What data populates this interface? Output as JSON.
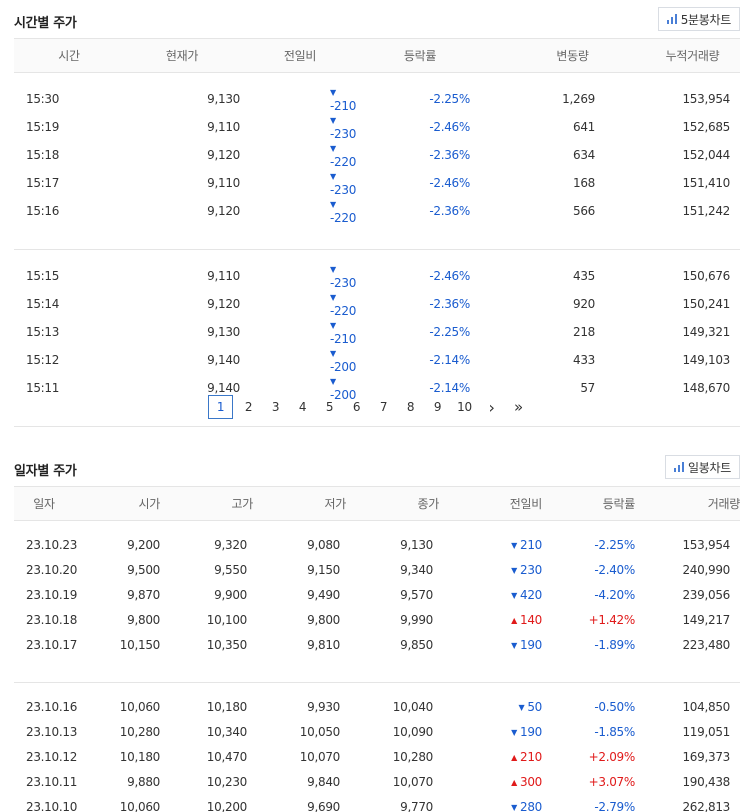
{
  "hourly": {
    "title": "시간별 주가",
    "chart_button": "5분봉차트",
    "columns": [
      "시간",
      "현재가",
      "전일비",
      "등락률",
      "변동량",
      "누적거래량"
    ],
    "groups": [
      [
        {
          "time": "15:30",
          "price": "9,130",
          "dir": "down",
          "change": "-210",
          "rate": "-2.25%",
          "vol_change": "1,269",
          "cum_vol": "153,954"
        },
        {
          "time": "15:19",
          "price": "9,110",
          "dir": "down",
          "change": "-230",
          "rate": "-2.46%",
          "vol_change": "641",
          "cum_vol": "152,685"
        },
        {
          "time": "15:18",
          "price": "9,120",
          "dir": "down",
          "change": "-220",
          "rate": "-2.36%",
          "vol_change": "634",
          "cum_vol": "152,044"
        },
        {
          "time": "15:17",
          "price": "9,110",
          "dir": "down",
          "change": "-230",
          "rate": "-2.46%",
          "vol_change": "168",
          "cum_vol": "151,410"
        },
        {
          "time": "15:16",
          "price": "9,120",
          "dir": "down",
          "change": "-220",
          "rate": "-2.36%",
          "vol_change": "566",
          "cum_vol": "151,242"
        }
      ],
      [
        {
          "time": "15:15",
          "price": "9,110",
          "dir": "down",
          "change": "-230",
          "rate": "-2.46%",
          "vol_change": "435",
          "cum_vol": "150,676"
        },
        {
          "time": "15:14",
          "price": "9,120",
          "dir": "down",
          "change": "-220",
          "rate": "-2.36%",
          "vol_change": "920",
          "cum_vol": "150,241"
        },
        {
          "time": "15:13",
          "price": "9,130",
          "dir": "down",
          "change": "-210",
          "rate": "-2.25%",
          "vol_change": "218",
          "cum_vol": "149,321"
        },
        {
          "time": "15:12",
          "price": "9,140",
          "dir": "down",
          "change": "-200",
          "rate": "-2.14%",
          "vol_change": "433",
          "cum_vol": "149,103"
        },
        {
          "time": "15:11",
          "price": "9,140",
          "dir": "down",
          "change": "-200",
          "rate": "-2.14%",
          "vol_change": "57",
          "cum_vol": "148,670"
        }
      ]
    ]
  },
  "pagination": {
    "current": "1",
    "pages": [
      "2",
      "3",
      "4",
      "5",
      "6",
      "7",
      "8",
      "9",
      "10"
    ],
    "next": "›",
    "last": "»"
  },
  "daily": {
    "title": "일자별 주가",
    "chart_button": "일봉차트",
    "columns": [
      "일자",
      "시가",
      "고가",
      "저가",
      "종가",
      "전일비",
      "등락률",
      "거래량"
    ],
    "groups": [
      [
        {
          "date": "23.10.23",
          "open": "9,200",
          "high": "9,320",
          "low": "9,080",
          "close": "9,130",
          "dir": "down",
          "change": "210",
          "rate": "-2.25%",
          "volume": "153,954"
        },
        {
          "date": "23.10.20",
          "open": "9,500",
          "high": "9,550",
          "low": "9,150",
          "close": "9,340",
          "dir": "down",
          "change": "230",
          "rate": "-2.40%",
          "volume": "240,990"
        },
        {
          "date": "23.10.19",
          "open": "9,870",
          "high": "9,900",
          "low": "9,490",
          "close": "9,570",
          "dir": "down",
          "change": "420",
          "rate": "-4.20%",
          "volume": "239,056"
        },
        {
          "date": "23.10.18",
          "open": "9,800",
          "high": "10,100",
          "low": "9,800",
          "close": "9,990",
          "dir": "up",
          "change": "140",
          "rate": "+1.42%",
          "volume": "149,217"
        },
        {
          "date": "23.10.17",
          "open": "10,150",
          "high": "10,350",
          "low": "9,810",
          "close": "9,850",
          "dir": "down",
          "change": "190",
          "rate": "-1.89%",
          "volume": "223,480"
        }
      ],
      [
        {
          "date": "23.10.16",
          "open": "10,060",
          "high": "10,180",
          "low": "9,930",
          "close": "10,040",
          "dir": "down",
          "change": "50",
          "rate": "-0.50%",
          "volume": "104,850"
        },
        {
          "date": "23.10.13",
          "open": "10,280",
          "high": "10,340",
          "low": "10,050",
          "close": "10,090",
          "dir": "down",
          "change": "190",
          "rate": "-1.85%",
          "volume": "119,051"
        },
        {
          "date": "23.10.12",
          "open": "10,180",
          "high": "10,470",
          "low": "10,070",
          "close": "10,280",
          "dir": "up",
          "change": "210",
          "rate": "+2.09%",
          "volume": "169,373"
        },
        {
          "date": "23.10.11",
          "open": "9,880",
          "high": "10,230",
          "low": "9,840",
          "close": "10,070",
          "dir": "up",
          "change": "300",
          "rate": "+3.07%",
          "volume": "190,438"
        },
        {
          "date": "23.10.10",
          "open": "10,060",
          "high": "10,200",
          "low": "9,690",
          "close": "9,770",
          "dir": "down",
          "change": "280",
          "rate": "-2.79%",
          "volume": "262,813"
        }
      ]
    ]
  },
  "colors": {
    "down": "#1a5ccf",
    "up": "#e01a1a",
    "chart_icon": "#4a7fd6"
  },
  "icons": {
    "chart_button_icon": "bar-chart-icon",
    "down_marker": "triangle-down-icon",
    "up_marker": "triangle-up-icon"
  }
}
